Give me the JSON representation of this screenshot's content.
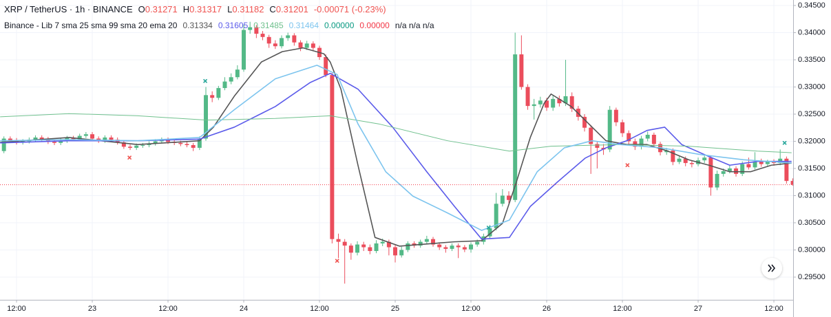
{
  "chart_data": {
    "type": "candlestick",
    "symbol": "XRP / TetherUS · 1h · BINANCE",
    "legend": {
      "labels": [
        "O",
        "H",
        "L",
        "C"
      ],
      "change": -0.00071,
      "change_pct": "(-0.23%)",
      "down_color": "#ef5350"
    },
    "indicator": {
      "title": "Binance - Lib 7 sma 25 sma 99 sma 20 ema 20",
      "extra": [
        {
          "label": "0.00000",
          "color": "#089981"
        },
        {
          "label": "0.00000",
          "color": "#f23645"
        },
        {
          "label": "n/a n/a n/a",
          "color": "#131722"
        }
      ]
    },
    "up_color": "#53b987",
    "down_color": "#eb4d5c",
    "xlim": [
      -2.62,
      123.05
    ],
    "ylim": [
      0.29082,
      0.34601
    ],
    "xticks": [
      {
        "value": 0,
        "label": "12:00"
      },
      {
        "value": 12,
        "label": "23"
      },
      {
        "value": 24,
        "label": "12:00"
      },
      {
        "value": 36,
        "label": "24"
      },
      {
        "value": 48,
        "label": "12:00"
      },
      {
        "value": 60,
        "label": "25"
      },
      {
        "value": 72,
        "label": "12:00"
      },
      {
        "value": 84,
        "label": "26"
      },
      {
        "value": 96,
        "label": "12:00"
      },
      {
        "value": 108,
        "label": "27"
      },
      {
        "value": 120,
        "label": "12:00"
      }
    ],
    "yticks": [
      {
        "value": 0.345,
        "label": "0.34500"
      },
      {
        "value": 0.34,
        "label": "0.34000"
      },
      {
        "value": 0.335,
        "label": "0.33500"
      },
      {
        "value": 0.33,
        "label": "0.33000"
      },
      {
        "value": 0.325,
        "label": "0.32500"
      },
      {
        "value": 0.32,
        "label": "0.32000"
      },
      {
        "value": 0.315,
        "label": "0.31500"
      },
      {
        "value": 0.31,
        "label": "0.31000"
      },
      {
        "value": 0.305,
        "label": "0.30500"
      },
      {
        "value": 0.3,
        "label": "0.30000"
      },
      {
        "value": 0.295,
        "label": "0.29500"
      }
    ],
    "grid": true,
    "x": [
      -2,
      -1,
      0,
      1,
      2,
      3,
      4,
      5,
      6,
      7,
      8,
      9,
      10,
      11,
      12,
      13,
      14,
      15,
      16,
      17,
      18,
      19,
      20,
      21,
      22,
      23,
      24,
      25,
      26,
      27,
      28,
      29,
      30,
      31,
      32,
      33,
      34,
      35,
      36,
      37,
      38,
      39,
      40,
      41,
      42,
      43,
      44,
      45,
      46,
      47,
      48,
      49,
      50,
      51,
      52,
      53,
      54,
      55,
      56,
      57,
      58,
      59,
      60,
      61,
      62,
      63,
      64,
      65,
      66,
      67,
      68,
      69,
      70,
      71,
      72,
      73,
      74,
      75,
      76,
      77,
      78,
      79,
      80,
      81,
      82,
      83,
      84,
      85,
      86,
      87,
      88,
      89,
      90,
      91,
      92,
      93,
      94,
      95,
      96,
      97,
      98,
      99,
      100,
      101,
      102,
      103,
      104,
      105,
      106,
      107,
      108,
      109,
      110,
      111,
      112,
      113,
      114,
      115,
      116,
      117,
      118,
      119,
      120,
      121,
      122,
      123
    ],
    "open": [
      0.3182,
      0.3205,
      0.3202,
      0.3198,
      0.32,
      0.3203,
      0.3207,
      0.3204,
      0.3199,
      0.3197,
      0.3201,
      0.3206,
      0.3204,
      0.321,
      0.3213,
      0.3205,
      0.3201,
      0.3207,
      0.3203,
      0.3198,
      0.319,
      0.3188,
      0.3192,
      0.3193,
      0.3196,
      0.32,
      0.3203,
      0.3199,
      0.3197,
      0.3195,
      0.3193,
      0.3188,
      0.3205,
      0.3285,
      0.328,
      0.3298,
      0.331,
      0.3318,
      0.3332,
      0.3405,
      0.341,
      0.3398,
      0.3392,
      0.338,
      0.3375,
      0.339,
      0.3395,
      0.3382,
      0.3372,
      0.338,
      0.3372,
      0.3355,
      0.3322,
      0.302,
      0.3015,
      0.3008,
      0.2995,
      0.301,
      0.3005,
      0.2998,
      0.3012,
      0.3015,
      0.3005,
      0.299,
      0.3,
      0.3012,
      0.3008,
      0.3015,
      0.302,
      0.301,
      0.3005,
      0.3002,
      0.3008,
      0.3005,
      0.3001,
      0.301,
      0.3015,
      0.3025,
      0.304,
      0.3085,
      0.31,
      0.3092,
      0.336,
      0.33,
      0.3265,
      0.3268,
      0.3275,
      0.3262,
      0.3278,
      0.327,
      0.3283,
      0.326,
      0.3245,
      0.3225,
      0.3195,
      0.3188,
      0.3185,
      0.3258,
      0.3235,
      0.3215,
      0.32,
      0.319,
      0.3205,
      0.3212,
      0.3195,
      0.318,
      0.3183,
      0.3162,
      0.3168,
      0.316,
      0.3158,
      0.3165,
      0.317,
      0.3115,
      0.314,
      0.3145,
      0.315,
      0.314,
      0.3158,
      0.3152,
      0.3163,
      0.3158,
      0.3162,
      0.316,
      0.3168,
      0.31271
    ],
    "high": [
      0.3209,
      0.3209,
      0.3206,
      0.3204,
      0.3207,
      0.3211,
      0.3211,
      0.3208,
      0.3203,
      0.3205,
      0.321,
      0.321,
      0.3214,
      0.3217,
      0.3217,
      0.3209,
      0.3211,
      0.3211,
      0.3207,
      0.3202,
      0.3194,
      0.3196,
      0.3197,
      0.32,
      0.3204,
      0.3207,
      0.3207,
      0.3203,
      0.3201,
      0.3199,
      0.3197,
      0.3209,
      0.33,
      0.3292,
      0.3302,
      0.3318,
      0.3325,
      0.334,
      0.3415,
      0.342,
      0.3414,
      0.3403,
      0.3396,
      0.3386,
      0.3395,
      0.34,
      0.3399,
      0.3386,
      0.3385,
      0.3384,
      0.3376,
      0.336,
      0.3326,
      0.303,
      0.302,
      0.3012,
      0.3016,
      0.3015,
      0.301,
      0.3018,
      0.3021,
      0.3019,
      0.301,
      0.3006,
      0.3016,
      0.3016,
      0.3019,
      0.3026,
      0.3024,
      0.3014,
      0.3009,
      0.3012,
      0.3012,
      0.3009,
      0.3014,
      0.3019,
      0.303,
      0.3046,
      0.3105,
      0.3112,
      0.3108,
      0.34,
      0.3395,
      0.3305,
      0.3278,
      0.3282,
      0.328,
      0.3284,
      0.3284,
      0.335,
      0.329,
      0.3265,
      0.325,
      0.323,
      0.32,
      0.3195,
      0.3265,
      0.3262,
      0.324,
      0.322,
      0.3205,
      0.321,
      0.3218,
      0.3216,
      0.3199,
      0.3188,
      0.3187,
      0.3172,
      0.3172,
      0.3164,
      0.317,
      0.3174,
      0.3174,
      0.3146,
      0.315,
      0.3155,
      0.3154,
      0.3163,
      0.317,
      0.318,
      0.3168,
      0.3166,
      0.3167,
      0.3185,
      0.3172,
      0.31317
    ],
    "low": [
      0.3178,
      0.3198,
      0.3194,
      0.3194,
      0.3196,
      0.3199,
      0.32,
      0.3195,
      0.3193,
      0.3193,
      0.3197,
      0.32,
      0.32,
      0.3206,
      0.3201,
      0.3197,
      0.3197,
      0.3199,
      0.3194,
      0.3186,
      0.3184,
      0.3184,
      0.3188,
      0.3189,
      0.3192,
      0.3196,
      0.3195,
      0.3193,
      0.3191,
      0.3189,
      0.3182,
      0.3184,
      0.3201,
      0.3272,
      0.3276,
      0.3294,
      0.3305,
      0.3314,
      0.3328,
      0.3398,
      0.339,
      0.3386,
      0.3372,
      0.337,
      0.3371,
      0.3385,
      0.3376,
      0.3366,
      0.3368,
      0.3366,
      0.335,
      0.3318,
      0.3012,
      0.2985,
      0.2938,
      0.2982,
      0.299,
      0.2998,
      0.2992,
      0.2994,
      0.3007,
      0.299,
      0.2977,
      0.2986,
      0.2996,
      0.3004,
      0.3004,
      0.3011,
      0.3006,
      0.3,
      0.2995,
      0.2998,
      0.2985,
      0.2996,
      0.2995,
      0.3006,
      0.301,
      0.3021,
      0.3036,
      0.308,
      0.3086,
      0.3088,
      0.3295,
      0.3258,
      0.324,
      0.3262,
      0.3256,
      0.3256,
      0.3264,
      0.3265,
      0.3254,
      0.3238,
      0.3218,
      0.314,
      0.315,
      0.3175,
      0.318,
      0.3228,
      0.3208,
      0.3193,
      0.3184,
      0.3185,
      0.32,
      0.3189,
      0.3174,
      0.3175,
      0.3156,
      0.3158,
      0.3154,
      0.3152,
      0.3154,
      0.316,
      0.31,
      0.311,
      0.3135,
      0.3141,
      0.3135,
      0.3136,
      0.3148,
      0.3148,
      0.3153,
      0.3153,
      0.3155,
      0.3156,
      0.3122,
      0.31182
    ],
    "close": [
      0.3205,
      0.3202,
      0.3198,
      0.32,
      0.3203,
      0.3207,
      0.3204,
      0.3199,
      0.3197,
      0.3201,
      0.3206,
      0.3204,
      0.321,
      0.3213,
      0.3205,
      0.3201,
      0.3207,
      0.3203,
      0.3198,
      0.319,
      0.3188,
      0.3192,
      0.3193,
      0.3196,
      0.32,
      0.3203,
      0.3199,
      0.3197,
      0.3195,
      0.3193,
      0.3188,
      0.3205,
      0.3285,
      0.328,
      0.3298,
      0.331,
      0.3318,
      0.3332,
      0.3405,
      0.341,
      0.3398,
      0.3392,
      0.338,
      0.3375,
      0.339,
      0.3395,
      0.3382,
      0.3372,
      0.338,
      0.3372,
      0.3355,
      0.3322,
      0.302,
      0.3015,
      0.3008,
      0.2995,
      0.301,
      0.3005,
      0.2998,
      0.3012,
      0.3015,
      0.3005,
      0.299,
      0.3,
      0.3012,
      0.3008,
      0.3015,
      0.302,
      0.301,
      0.3005,
      0.3002,
      0.3008,
      0.3005,
      0.3001,
      0.301,
      0.3015,
      0.3025,
      0.304,
      0.3085,
      0.31,
      0.3092,
      0.336,
      0.33,
      0.3265,
      0.3268,
      0.3275,
      0.3262,
      0.3278,
      0.327,
      0.3283,
      0.326,
      0.3245,
      0.3225,
      0.3195,
      0.3188,
      0.3185,
      0.3258,
      0.3235,
      0.3215,
      0.32,
      0.319,
      0.3205,
      0.3212,
      0.3195,
      0.318,
      0.3183,
      0.3162,
      0.3168,
      0.316,
      0.3158,
      0.3165,
      0.317,
      0.3115,
      0.314,
      0.3145,
      0.315,
      0.314,
      0.3158,
      0.3152,
      0.3163,
      0.3158,
      0.3162,
      0.316,
      0.3168,
      0.3127,
      0.31201
    ],
    "last_price_line": {
      "color": "#f23645"
    },
    "series": [
      {
        "color": "#555555",
        "last_value": 0.31334,
        "x": [
          -2.6,
          8.3,
          19.2,
          29.0,
          31.2,
          34.5,
          38.8,
          42.1,
          45.4,
          48.7,
          49.7,
          51.4,
          54.1,
          56.8,
          60.7,
          65.0,
          69.4,
          73.7,
          77.0,
          79.2,
          81.4,
          83.6,
          84.7,
          87.9,
          91.2,
          93.4,
          96.7,
          99.9,
          103.2,
          106.5,
          109.7,
          113.0,
          116.3,
          119.6,
          122.8
        ],
        "values": [
          0.3198,
          0.3207,
          0.3194,
          0.3201,
          0.3226,
          0.3283,
          0.3346,
          0.3365,
          0.3372,
          0.3361,
          0.3346,
          0.3296,
          0.3156,
          0.3023,
          0.3007,
          0.3011,
          0.3015,
          0.3017,
          0.3049,
          0.3125,
          0.3207,
          0.327,
          0.3287,
          0.3264,
          0.3226,
          0.3201,
          0.3194,
          0.3194,
          0.3182,
          0.3166,
          0.3156,
          0.3144,
          0.3144,
          0.3156,
          0.316
        ]
      },
      {
        "color": "#5b5bea",
        "last_value": 0.31605,
        "x": [
          -2.6,
          8.3,
          19.2,
          29.0,
          34.5,
          41.0,
          46.5,
          49.7,
          54.1,
          59.6,
          65.0,
          69.4,
          73.7,
          78.1,
          81.4,
          85.7,
          90.1,
          93.4,
          96.7,
          99.9,
          102.7,
          105.4,
          109.7,
          113.0,
          117.4,
          122.8
        ],
        "values": [
          0.3197,
          0.3201,
          0.3201,
          0.3204,
          0.3226,
          0.3264,
          0.3308,
          0.3325,
          0.3296,
          0.3226,
          0.3144,
          0.308,
          0.302,
          0.3023,
          0.308,
          0.3125,
          0.3169,
          0.3188,
          0.3201,
          0.322,
          0.3226,
          0.3194,
          0.3172,
          0.3156,
          0.3163,
          0.3163
        ]
      },
      {
        "color": "#6fc08d",
        "last_value": 0.31485,
        "x": [
          -2.6,
          8.3,
          19.2,
          30.1,
          41.0,
          49.7,
          57.4,
          68.3,
          78.1,
          84.7,
          95.6,
          106.5,
          117.4,
          122.8
        ],
        "values": [
          0.3245,
          0.3251,
          0.3247,
          0.3239,
          0.3242,
          0.3247,
          0.3232,
          0.3201,
          0.3182,
          0.3191,
          0.3194,
          0.3191,
          0.3182,
          0.3179
        ]
      },
      {
        "color": "#7cc4ee",
        "last_value": 0.31464,
        "x": [
          -2.6,
          8.3,
          19.2,
          29.0,
          34.5,
          41.0,
          47.6,
          50.8,
          54.1,
          58.5,
          62.8,
          68.3,
          73.7,
          78.1,
          82.5,
          86.8,
          91.2,
          95.6,
          102.1,
          108.7,
          115.2,
          122.8
        ],
        "values": [
          0.3201,
          0.3203,
          0.3201,
          0.3207,
          0.3258,
          0.3315,
          0.334,
          0.3323,
          0.3232,
          0.3144,
          0.3099,
          0.3068,
          0.3036,
          0.3055,
          0.3144,
          0.3188,
          0.3201,
          0.3194,
          0.3188,
          0.3175,
          0.3166,
          0.316
        ]
      }
    ],
    "signals": [
      {
        "x": 29.9,
        "y": 0.3311,
        "color": "#26a69a"
      },
      {
        "x": 17.9,
        "y": 0.317,
        "color": "#ef5350"
      },
      {
        "x": 50.8,
        "y": 0.298,
        "color": "#ef5350"
      },
      {
        "x": 74.8,
        "y": 0.3041,
        "color": "#26a69a"
      },
      {
        "x": 96.8,
        "y": 0.3156,
        "color": "#ef5350"
      },
      {
        "x": 121.7,
        "y": 0.3197,
        "color": "#26a69a"
      }
    ]
  }
}
